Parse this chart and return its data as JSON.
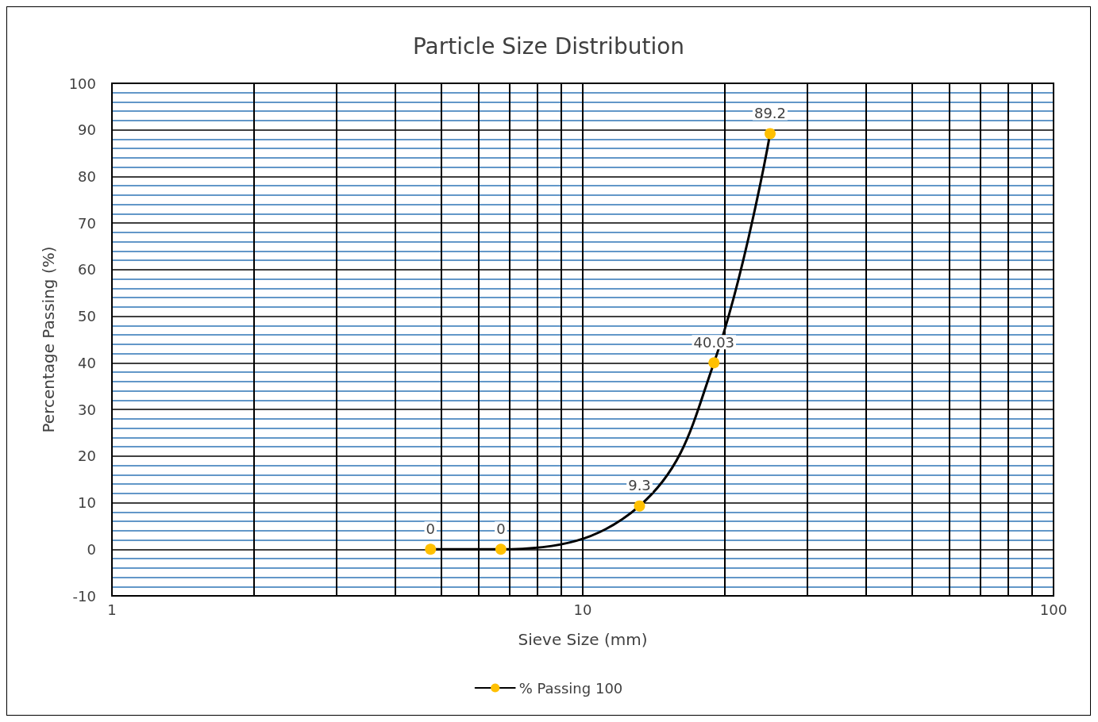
{
  "chart_data": {
    "type": "line",
    "title": "Particle Size Distribution",
    "xlabel": "Sieve Size (mm)",
    "ylabel": "Percentage Passing (%)",
    "x": [
      4.75,
      6.7,
      13.2,
      19,
      25
    ],
    "series": [
      {
        "name": "% Passing 100",
        "color": "#ffc000",
        "values": [
          0,
          0,
          9.3,
          40.03,
          89.2
        ]
      }
    ],
    "log": "x",
    "xlim": [
      1,
      100
    ],
    "xticks": [
      1,
      {
        "value": 2,
        "label": null
      },
      {
        "value": 3,
        "label": null
      },
      {
        "value": 4,
        "label": null
      },
      {
        "value": 5,
        "label": null
      },
      {
        "value": 6,
        "label": null
      },
      {
        "value": 7,
        "label": null
      },
      {
        "value": 8,
        "label": null
      },
      {
        "value": 9,
        "label": null
      },
      10,
      {
        "value": 20,
        "label": null
      },
      {
        "value": 30,
        "label": null
      },
      {
        "value": 40,
        "label": null
      },
      {
        "value": 50,
        "label": null
      },
      {
        "value": 60,
        "label": null
      },
      {
        "value": 70,
        "label": null
      },
      {
        "value": 80,
        "label": null
      },
      {
        "value": 90,
        "label": null
      },
      100
    ],
    "ylim": [
      -10,
      100
    ],
    "yticks": [
      -10,
      {
        "value": -8,
        "label": null
      },
      {
        "value": -6,
        "label": null
      },
      {
        "value": -4,
        "label": null
      },
      {
        "value": -2,
        "label": null
      },
      0,
      {
        "value": 2,
        "label": null
      },
      {
        "value": 4,
        "label": null
      },
      {
        "value": 6,
        "label": null
      },
      {
        "value": 8,
        "label": null
      },
      10,
      {
        "value": 12,
        "label": null
      },
      {
        "value": 14,
        "label": null
      },
      {
        "value": 16,
        "label": null
      },
      {
        "value": 18,
        "label": null
      },
      20,
      {
        "value": 22,
        "label": null
      },
      {
        "value": 24,
        "label": null
      },
      {
        "value": 26,
        "label": null
      },
      {
        "value": 28,
        "label": null
      },
      30,
      {
        "value": 32,
        "label": null
      },
      {
        "value": 34,
        "label": null
      },
      {
        "value": 36,
        "label": null
      },
      {
        "value": 38,
        "label": null
      },
      40,
      {
        "value": 42,
        "label": null
      },
      {
        "value": 44,
        "label": null
      },
      {
        "value": 46,
        "label": null
      },
      {
        "value": 48,
        "label": null
      },
      50,
      {
        "value": 52,
        "label": null
      },
      {
        "value": 54,
        "label": null
      },
      {
        "value": 56,
        "label": null
      },
      {
        "value": 58,
        "label": null
      },
      60,
      {
        "value": 62,
        "label": null
      },
      {
        "value": 64,
        "label": null
      },
      {
        "value": 66,
        "label": null
      },
      {
        "value": 68,
        "label": null
      },
      70,
      {
        "value": 72,
        "label": null
      },
      {
        "value": 74,
        "label": null
      },
      {
        "value": 76,
        "label": null
      },
      {
        "value": 78,
        "label": null
      },
      80,
      {
        "value": 82,
        "label": null
      },
      {
        "value": 84,
        "label": null
      },
      {
        "value": 86,
        "label": null
      },
      {
        "value": 88,
        "label": null
      },
      90,
      {
        "value": 92,
        "label": null
      },
      {
        "value": 94,
        "label": null
      },
      {
        "value": 96,
        "label": null
      },
      {
        "value": 98,
        "label": null
      },
      100
    ],
    "grid": true,
    "legend": "bottom",
    "marker": "circle",
    "line_style": "solid",
    "data_labels": true
  }
}
